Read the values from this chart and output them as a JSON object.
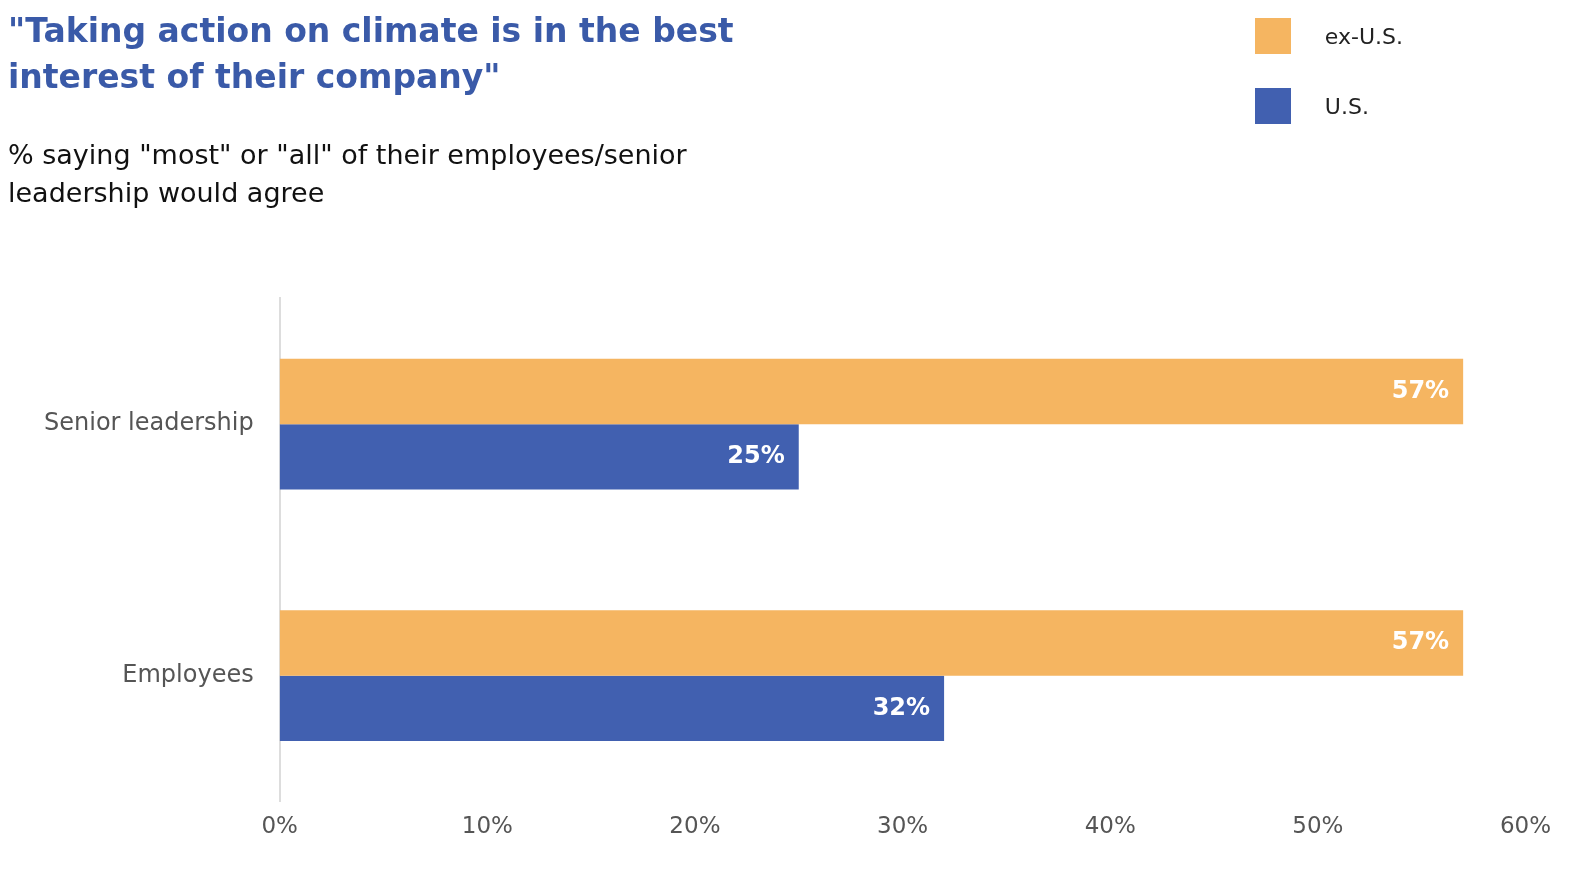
{
  "chart_data": {
    "type": "bar",
    "orientation": "horizontal",
    "title": "\"Taking action on climate is in the best interest of their company\"",
    "subtitle": "% saying \"most\" or \"all\" of their employees/senior leadership would agree",
    "categories": [
      "Senior leadership",
      "Employees"
    ],
    "series": [
      {
        "name": "ex-U.S.",
        "color": "#f5b561",
        "values": [
          57,
          57
        ],
        "value_labels": [
          "57%",
          "57%"
        ]
      },
      {
        "name": "U.S.",
        "color": "#4160b0",
        "values": [
          25,
          32
        ],
        "value_labels": [
          "25%",
          "32%"
        ]
      }
    ],
    "xlim": [
      0,
      60
    ],
    "xticks": [
      {
        "value": 0,
        "label": "0%"
      },
      {
        "value": 10,
        "label": "10%"
      },
      {
        "value": 20,
        "label": "20%"
      },
      {
        "value": 30,
        "label": "30%"
      },
      {
        "value": 40,
        "label": "40%"
      },
      {
        "value": 50,
        "label": "50%"
      },
      {
        "value": 60,
        "label": "60%"
      }
    ],
    "grid": false,
    "legend": "top right"
  }
}
